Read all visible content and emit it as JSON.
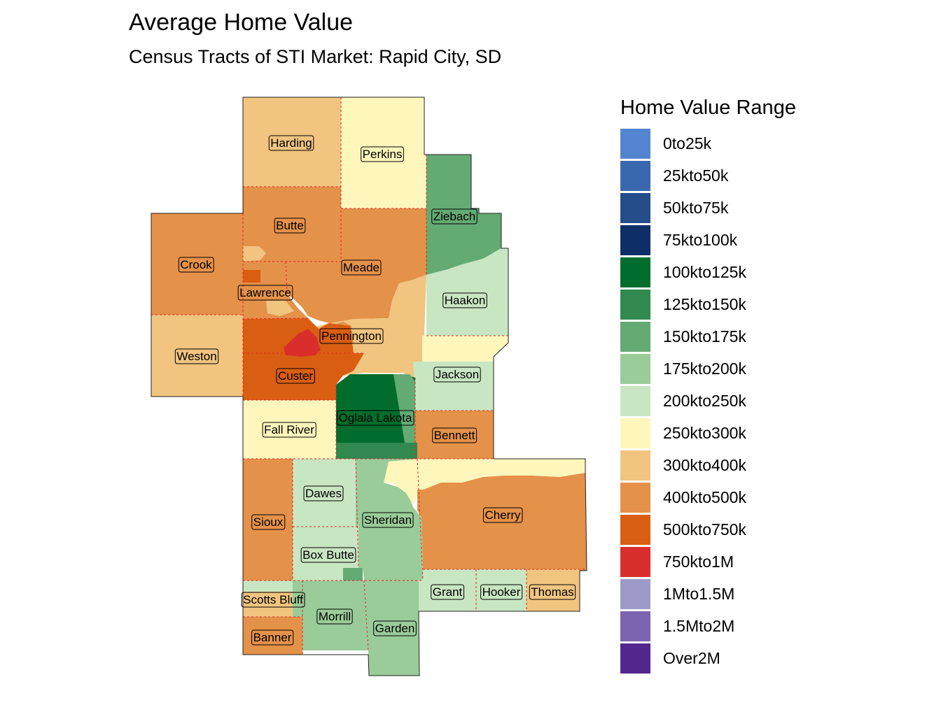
{
  "title": "Average Home Value",
  "subtitle": "Census Tracts of STI Market: Rapid City, SD",
  "legend": {
    "title": "Home Value Range",
    "items": [
      {
        "label": "0to25k",
        "color": "#5384D0"
      },
      {
        "label": "25kto50k",
        "color": "#3A68AE"
      },
      {
        "label": "50kto75k",
        "color": "#244D8A"
      },
      {
        "label": "75kto100k",
        "color": "#0D2E66"
      },
      {
        "label": "100kto125k",
        "color": "#006D2C"
      },
      {
        "label": "125kto150k",
        "color": "#31894F"
      },
      {
        "label": "150kto175k",
        "color": "#63AA73"
      },
      {
        "label": "175kto200k",
        "color": "#99CC99"
      },
      {
        "label": "200kto250k",
        "color": "#C8E6C1"
      },
      {
        "label": "250kto300k",
        "color": "#FFF6BC"
      },
      {
        "label": "300kto400k",
        "color": "#F1C480"
      },
      {
        "label": "400kto500k",
        "color": "#E49149"
      },
      {
        "label": "500kto750k",
        "color": "#DA5E12"
      },
      {
        "label": "750kto1M",
        "color": "#DA2E2C"
      },
      {
        "label": "1Mto1.5M",
        "color": "#9E9AC8"
      },
      {
        "label": "1.5Mto2M",
        "color": "#7B64AF"
      },
      {
        "label": "Over2M",
        "color": "#54278F"
      }
    ]
  },
  "counties": [
    {
      "name": "Harding"
    },
    {
      "name": "Perkins"
    },
    {
      "name": "Ziebach"
    },
    {
      "name": "Butte"
    },
    {
      "name": "Crook"
    },
    {
      "name": "Meade"
    },
    {
      "name": "Lawrence"
    },
    {
      "name": "Haakon"
    },
    {
      "name": "Pennington"
    },
    {
      "name": "Weston"
    },
    {
      "name": "Custer"
    },
    {
      "name": "Jackson"
    },
    {
      "name": "Oglala Lakota"
    },
    {
      "name": "Fall River"
    },
    {
      "name": "Bennett"
    },
    {
      "name": "Dawes"
    },
    {
      "name": "Cherry"
    },
    {
      "name": "Sheridan"
    },
    {
      "name": "Sioux"
    },
    {
      "name": "Box Butte"
    },
    {
      "name": "Grant"
    },
    {
      "name": "Hooker"
    },
    {
      "name": "Thomas"
    },
    {
      "name": "Scotts Bluff"
    },
    {
      "name": "Morrill"
    },
    {
      "name": "Garden"
    },
    {
      "name": "Banner"
    }
  ]
}
